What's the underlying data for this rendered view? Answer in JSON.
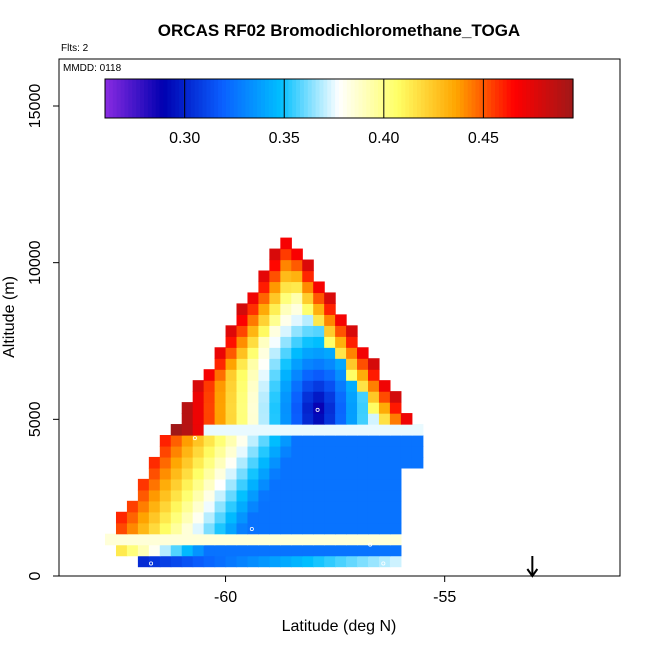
{
  "chart_data": {
    "type": "heatmap",
    "title": "ORCAS RF02 Bromodichloromethane_TOGA",
    "subtitle_flights": "Flts: 2",
    "subtitle_date": "MMDD: 0118",
    "xlabel": "Latitude (deg N)",
    "ylabel": "Altitude (m)",
    "xlim": [
      -63.8,
      -51.0
    ],
    "ylim": [
      0,
      16500
    ],
    "x_ticks": [
      -60,
      -55
    ],
    "x_tick_labels": [
      "-60",
      "-55"
    ],
    "y_ticks": [
      0,
      5000,
      10000,
      15000
    ],
    "y_tick_labels": [
      "0",
      "5000",
      "10000",
      "15000"
    ],
    "colorbar": {
      "min": 0.26,
      "max": 0.495,
      "ticks": [
        0.3,
        0.35,
        0.4,
        0.45
      ],
      "tick_labels": [
        "0.30",
        "0.35",
        "0.40",
        "0.45"
      ],
      "colors": [
        "#8a2be2",
        "#0000b0",
        "#0a5fff",
        "#00bfff",
        "#ffffff",
        "#ffff66",
        "#ffa500",
        "#ff0000",
        "#a01818"
      ]
    },
    "arrow_marker": {
      "latitude": -53.0,
      "label": ""
    },
    "cell": {
      "lat_step": 0.25,
      "alt_step": 350
    },
    "triangle": {
      "apex_lat": -58.6,
      "apex_alt": 11000,
      "left_lat": -62.8,
      "left_alt": 900,
      "right_lat": -55.9,
      "base_alt": 300
    },
    "sample_points": [
      {
        "lat": -58.6,
        "alt": 10900
      },
      {
        "lat": -57.9,
        "alt": 5300
      },
      {
        "lat": -60.7,
        "alt": 4400
      },
      {
        "lat": -59.4,
        "alt": 1500
      },
      {
        "lat": -56.7,
        "alt": 1000
      },
      {
        "lat": -56.4,
        "alt": 400
      },
      {
        "lat": -61.7,
        "alt": 400
      }
    ]
  }
}
